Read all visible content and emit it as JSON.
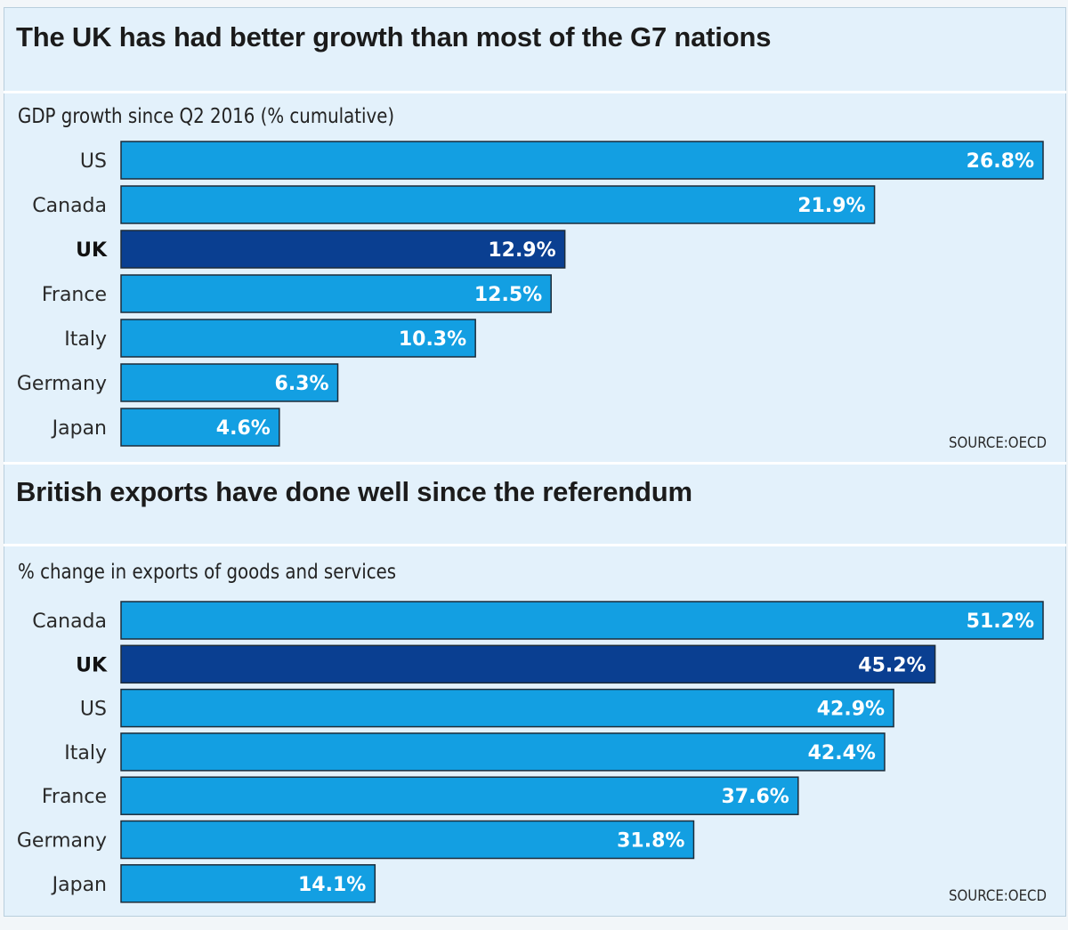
{
  "colors": {
    "bar": "#139fe2",
    "bar_highlight": "#0a3f91",
    "bar_outline": "#1c2c3a",
    "background": "#e3f1fb"
  },
  "chart_data": [
    {
      "type": "bar",
      "orientation": "horizontal",
      "title": "The UK has had better growth than most of the G7 nations",
      "subtitle": "GDP growth since Q2 2016 (% cumulative)",
      "source": "SOURCE:OECD",
      "categories": [
        "US",
        "Canada",
        "UK",
        "France",
        "Italy",
        "Germany",
        "Japan"
      ],
      "values": [
        26.8,
        21.9,
        12.9,
        12.5,
        10.3,
        6.3,
        4.6
      ],
      "value_labels": [
        "26.8%",
        "21.9%",
        "12.9%",
        "12.5%",
        "10.3%",
        "6.3%",
        "4.6%"
      ],
      "highlight": "UK",
      "xlim": [
        0,
        26.8
      ],
      "grid": false,
      "legend": "none"
    },
    {
      "type": "bar",
      "orientation": "horizontal",
      "title": "British exports have done well since the referendum",
      "subtitle": "% change in exports of goods and services",
      "source": "SOURCE:OECD",
      "categories": [
        "Canada",
        "UK",
        "US",
        "Italy",
        "France",
        "Germany",
        "Japan"
      ],
      "values": [
        51.2,
        45.2,
        42.9,
        42.4,
        37.6,
        31.8,
        14.1
      ],
      "value_labels": [
        "51.2%",
        "45.2%",
        "42.9%",
        "42.4%",
        "37.6%",
        "31.8%",
        "14.1%"
      ],
      "highlight": "UK",
      "xlim": [
        0,
        51.2
      ],
      "grid": false,
      "legend": "none"
    }
  ]
}
